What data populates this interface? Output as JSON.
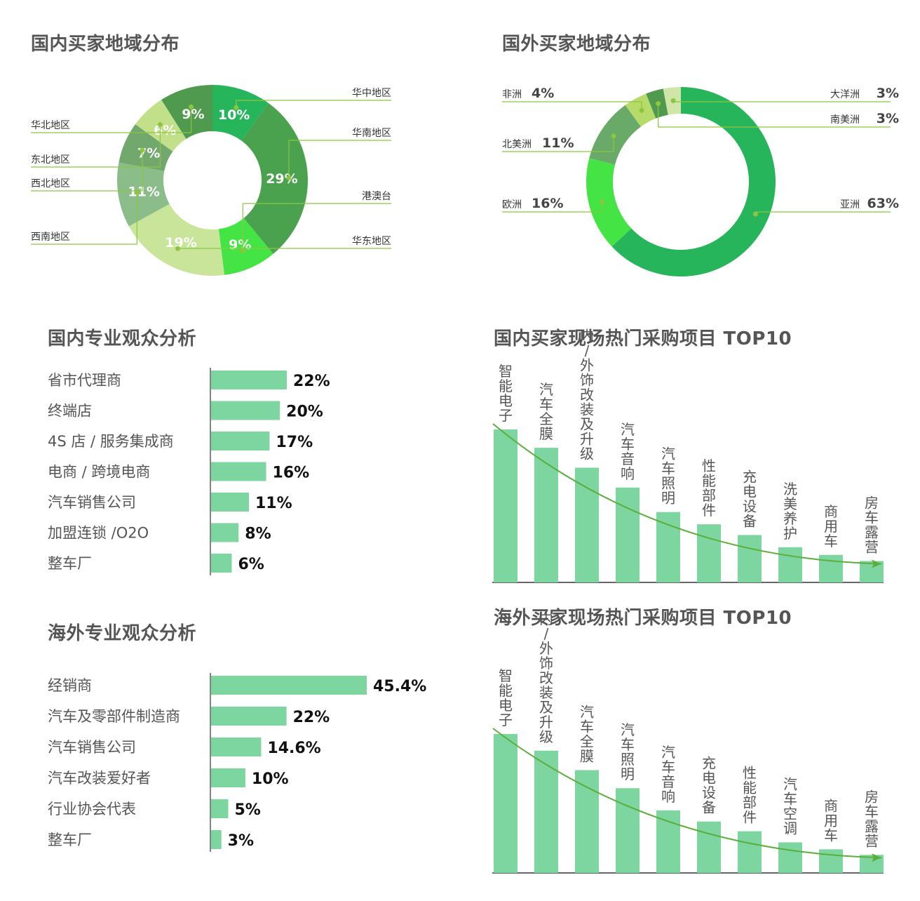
{
  "colors": {
    "bar": "#7dd6a0",
    "leader": "#8cc63f",
    "trend": "#5cae3c",
    "axis": "#333333"
  },
  "chart_data": [
    {
      "type": "pie",
      "donut": true,
      "title": "国内买家地域分布",
      "slices": [
        {
          "label": "华中地区",
          "value": 10,
          "color": "#27b55c"
        },
        {
          "label": "华南地区",
          "value": 29,
          "color": "#4aa14e"
        },
        {
          "label": "港澳台",
          "value": 9,
          "color": "#44e445"
        },
        {
          "label": "华东地区",
          "value": 19,
          "color": "#c8e59a"
        },
        {
          "label": "西南地区",
          "value": 11,
          "color": "#8bbd8b"
        },
        {
          "label": "西北地区",
          "value": 7,
          "color": "#72a86e"
        },
        {
          "label": "东北地区",
          "value": 6,
          "color": "#c2e08a"
        },
        {
          "label": "华北地区",
          "value": 9,
          "color": "#4f9a4e"
        }
      ]
    },
    {
      "type": "pie",
      "donut": true,
      "title": "国外买家地域分布",
      "slices": [
        {
          "label": "亚洲",
          "value": 63,
          "color": "#27b55c"
        },
        {
          "label": "欧洲",
          "value": 16,
          "color": "#44e445"
        },
        {
          "label": "北美洲",
          "value": 11,
          "color": "#6aaa68"
        },
        {
          "label": "非洲",
          "value": 4,
          "color": "#b7db6a"
        },
        {
          "label": "南美洲",
          "value": 3,
          "color": "#4f9a4e"
        },
        {
          "label": "大洋洲",
          "value": 3,
          "color": "#cfe6a8"
        }
      ]
    },
    {
      "type": "bar",
      "orientation": "horizontal",
      "title": "国内专业观众分析",
      "categories": [
        "省市代理商",
        "终端店",
        "4S 店 / 服务集成商",
        "电商 / 跨境电商",
        "汽车销售公司",
        "加盟连锁 /O2O",
        "整车厂"
      ],
      "values": [
        22,
        20,
        17,
        16,
        11,
        8,
        6
      ],
      "value_labels": [
        "22%",
        "20%",
        "17%",
        "16%",
        "11%",
        "8%",
        "6%"
      ]
    },
    {
      "type": "bar",
      "orientation": "horizontal",
      "title": "海外专业观众分析",
      "categories": [
        "经销商",
        "汽车及零部件制造商",
        "汽车销售公司",
        "汽车改装爱好者",
        "行业协会代表",
        "整车厂"
      ],
      "values": [
        45.4,
        22,
        14.6,
        10,
        5,
        3
      ],
      "value_labels": [
        "45.4%",
        "22%",
        "14.6%",
        "10%",
        "5%",
        "3%"
      ]
    },
    {
      "type": "bar",
      "orientation": "vertical",
      "title": "国内买家现场热门采购项目 TOP10",
      "categories": [
        "智能电子",
        "汽车全膜",
        "内/外饰改装及升级",
        "汽车音响",
        "汽车照明",
        "性能部件",
        "充电设备",
        "洗美养护",
        "商用车",
        "房车露营"
      ],
      "values": [
        100,
        88,
        75,
        62,
        46,
        38,
        31,
        23,
        18,
        14
      ],
      "trend": "decreasing"
    },
    {
      "type": "bar",
      "orientation": "vertical",
      "title": "海外买家现场热门采购项目 TOP10",
      "categories": [
        "智能电子",
        "内/外饰改装及升级",
        "汽车全膜",
        "汽车照明",
        "汽车音响",
        "充电设备",
        "性能部件",
        "汽车空调",
        "商用车",
        "房车露营"
      ],
      "values": [
        100,
        88,
        74,
        61,
        45,
        37,
        30,
        22,
        17,
        13
      ],
      "trend": "decreasing"
    }
  ]
}
